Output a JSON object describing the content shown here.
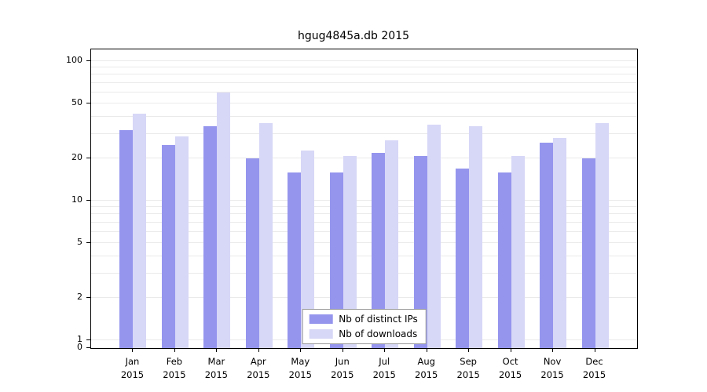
{
  "chart_data": {
    "type": "bar",
    "title": "hgug4845a.db 2015",
    "categories": [
      "Jan",
      "Feb",
      "Mar",
      "Apr",
      "May",
      "Jun",
      "Jul",
      "Aug",
      "Sep",
      "Oct",
      "Nov",
      "Dec"
    ],
    "year": "2015",
    "series": [
      {
        "name": "Nb of distinct IPs",
        "color": "#9595ee",
        "values": [
          32,
          25,
          34,
          20,
          16,
          16,
          22,
          21,
          17,
          16,
          26,
          20
        ]
      },
      {
        "name": "Nb of downloads",
        "color": "#d7d7f7",
        "values": [
          42,
          29,
          60,
          36,
          23,
          21,
          27,
          35,
          34,
          21,
          28,
          36
        ]
      }
    ],
    "yscale": "log",
    "yticks": [
      100,
      50,
      20,
      10,
      5,
      2,
      1,
      0
    ],
    "ylim_top": 120,
    "grid": true,
    "legend_position": "bottom-center-inside"
  },
  "legend": {
    "items": [
      {
        "label": "Nb of distinct IPs"
      },
      {
        "label": "Nb of downloads"
      }
    ]
  }
}
